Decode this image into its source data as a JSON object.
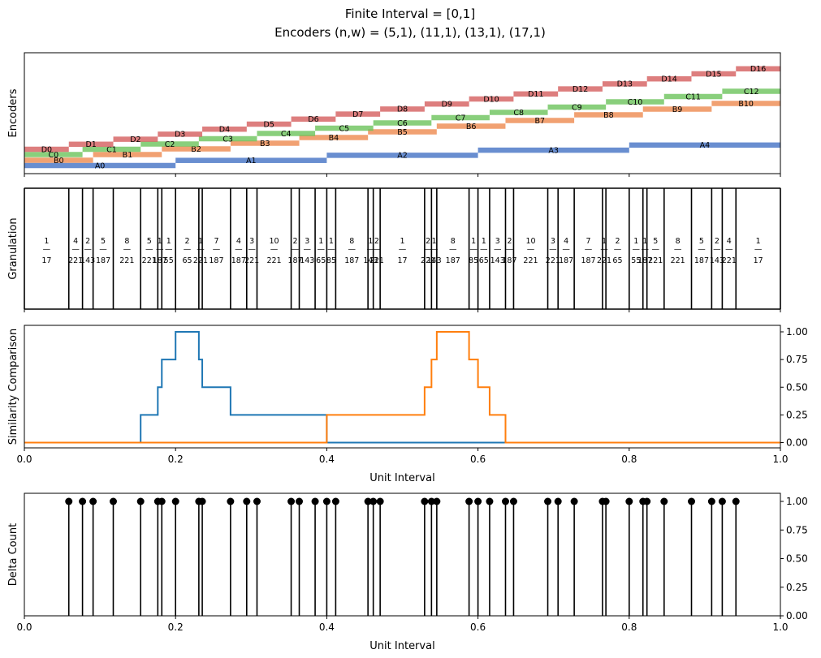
{
  "figure": {
    "title_line1": "Finite Interval = [0,1]",
    "title_line2": "Encoders (n,w) = (5,1), (11,1), (13,1), (17,1)"
  },
  "colors": {
    "A": "#4472c4",
    "B": "#ed8a4f",
    "C": "#6cc35b",
    "D": "#d45e5e",
    "series1": "#1f77b4",
    "series2": "#ff7f0e",
    "stem": "#000000"
  },
  "chart_data": [
    {
      "type": "bar",
      "panel": "encoders",
      "ylabel": "Encoders",
      "xlim": [
        0,
        1
      ],
      "encoders": [
        {
          "name": "A",
          "n": 5,
          "w": 1,
          "labels": [
            "A0",
            "A1",
            "A2",
            "A3",
            "A4"
          ]
        },
        {
          "name": "B",
          "n": 11,
          "w": 1,
          "labels": [
            "B0",
            "B1",
            "B2",
            "B3",
            "B4",
            "B5",
            "B6",
            "B7",
            "B8",
            "B9",
            "B10"
          ]
        },
        {
          "name": "C",
          "n": 13,
          "w": 1,
          "labels": [
            "C0",
            "C1",
            "C2",
            "C3",
            "C4",
            "C5",
            "C6",
            "C7",
            "C8",
            "C9",
            "C10",
            "C11",
            "C12"
          ]
        },
        {
          "name": "D",
          "n": 17,
          "w": 1,
          "labels": [
            "D0",
            "D1",
            "D2",
            "D3",
            "D4",
            "D5",
            "D6",
            "D7",
            "D8",
            "D9",
            "D10",
            "D11",
            "D12",
            "D13",
            "D14",
            "D15",
            "D16"
          ]
        }
      ]
    },
    {
      "type": "bar",
      "panel": "granulation",
      "ylabel": "Granulation",
      "xlim": [
        0,
        1
      ],
      "boundaries": [
        0,
        0.0588,
        0.0769,
        0.0909,
        0.1176,
        0.1538,
        0.1765,
        0.1818,
        0.2,
        0.2308,
        0.2353,
        0.2727,
        0.2941,
        0.3077,
        0.3529,
        0.3636,
        0.3846,
        0.4,
        0.4118,
        0.4545,
        0.4615,
        0.4706,
        0.5294,
        0.5385,
        0.5455,
        0.5882,
        0.6,
        0.6154,
        0.6364,
        0.6471,
        0.6923,
        0.7059,
        0.7273,
        0.7647,
        0.7692,
        0.8,
        0.8182,
        0.8235,
        0.8462,
        0.8824,
        0.9091,
        0.9231,
        0.9412,
        1
      ],
      "widths": [
        {
          "num": "1",
          "den": "17"
        },
        {
          "num": "4",
          "den": "221"
        },
        {
          "num": "2",
          "den": "143"
        },
        {
          "num": "5",
          "den": "187"
        },
        {
          "num": "8",
          "den": "221"
        },
        {
          "num": "5",
          "den": "221"
        },
        {
          "num": "1",
          "den": "187"
        },
        {
          "num": "1",
          "den": "55"
        },
        {
          "num": "2",
          "den": "65"
        },
        {
          "num": "1",
          "den": "221"
        },
        {
          "num": "7",
          "den": "187"
        },
        {
          "num": "4",
          "den": "187"
        },
        {
          "num": "3",
          "den": "221"
        },
        {
          "num": "10",
          "den": "221"
        },
        {
          "num": "2",
          "den": "187"
        },
        {
          "num": "3",
          "den": "143"
        },
        {
          "num": "1",
          "den": "65"
        },
        {
          "num": "1",
          "den": "85"
        },
        {
          "num": "8",
          "den": "187"
        },
        {
          "num": "1",
          "den": "143"
        },
        {
          "num": "2",
          "den": "221"
        },
        {
          "num": "1",
          "den": "17"
        },
        {
          "num": "2",
          "den": "221"
        },
        {
          "num": "1",
          "den": "143"
        },
        {
          "num": "8",
          "den": "187"
        },
        {
          "num": "1",
          "den": "85"
        },
        {
          "num": "1",
          "den": "65"
        },
        {
          "num": "3",
          "den": "143"
        },
        {
          "num": "2",
          "den": "187"
        },
        {
          "num": "10",
          "den": "221"
        },
        {
          "num": "3",
          "den": "221"
        },
        {
          "num": "4",
          "den": "187"
        },
        {
          "num": "7",
          "den": "187"
        },
        {
          "num": "1",
          "den": "221"
        },
        {
          "num": "2",
          "den": "65"
        },
        {
          "num": "1",
          "den": "55"
        },
        {
          "num": "1",
          "den": "187"
        },
        {
          "num": "5",
          "den": "221"
        },
        {
          "num": "8",
          "den": "221"
        },
        {
          "num": "5",
          "den": "187"
        },
        {
          "num": "2",
          "den": "143"
        },
        {
          "num": "4",
          "den": "221"
        },
        {
          "num": "1",
          "den": "17"
        }
      ]
    },
    {
      "type": "line",
      "panel": "similarity",
      "ylabel": "Similarity Comparison",
      "xlabel": "Unit Interval",
      "xlim": [
        0,
        1
      ],
      "ylim": [
        -0.05,
        1.05
      ],
      "xticks": [
        "0.0",
        "0.2",
        "0.4",
        "0.6",
        "0.8",
        "1.0"
      ],
      "yticks": [
        "0.00",
        "0.25",
        "0.50",
        "0.75",
        "1.00"
      ],
      "series": [
        {
          "color": "series1",
          "x": [
            0,
            0.1538,
            0.1538,
            0.1765,
            0.1765,
            0.1818,
            0.1818,
            0.2,
            0.2,
            0.2308,
            0.2308,
            0.2353,
            0.2353,
            0.2727,
            0.2727,
            0.4,
            0.4,
            1
          ],
          "y": [
            0,
            0,
            0.25,
            0.25,
            0.5,
            0.5,
            0.75,
            0.75,
            1,
            1,
            0.75,
            0.75,
            0.5,
            0.5,
            0.25,
            0.25,
            0,
            0
          ]
        },
        {
          "color": "series2",
          "x": [
            0,
            0.4,
            0.4,
            0.5294,
            0.5294,
            0.5385,
            0.5385,
            0.5455,
            0.5455,
            0.5882,
            0.5882,
            0.6,
            0.6,
            0.6154,
            0.6154,
            0.6364,
            0.6364,
            1
          ],
          "y": [
            0,
            0,
            0.25,
            0.25,
            0.5,
            0.5,
            0.75,
            0.75,
            1,
            1,
            0.75,
            0.75,
            0.5,
            0.5,
            0.25,
            0.25,
            0,
            0
          ]
        }
      ]
    },
    {
      "type": "scatter",
      "panel": "delta",
      "ylabel": "Delta Count",
      "xlabel": "Unit Interval",
      "xlim": [
        0,
        1
      ],
      "ylim": [
        0,
        1.05
      ],
      "xticks": [
        "0.0",
        "0.2",
        "0.4",
        "0.6",
        "0.8",
        "1.0"
      ],
      "yticks": [
        "0.00",
        "0.25",
        "0.50",
        "0.75",
        "1.00"
      ],
      "x": [
        0.0588,
        0.0769,
        0.0909,
        0.1176,
        0.1538,
        0.1765,
        0.1818,
        0.2,
        0.2308,
        0.2353,
        0.2727,
        0.2941,
        0.3077,
        0.3529,
        0.3636,
        0.3846,
        0.4,
        0.4118,
        0.4545,
        0.4615,
        0.4706,
        0.5294,
        0.5385,
        0.5455,
        0.5882,
        0.6,
        0.6154,
        0.6364,
        0.6471,
        0.6923,
        0.7059,
        0.7273,
        0.7647,
        0.7692,
        0.8,
        0.8182,
        0.8235,
        0.8462,
        0.8824,
        0.9091,
        0.9231,
        0.9412
      ],
      "y": 1
    }
  ]
}
